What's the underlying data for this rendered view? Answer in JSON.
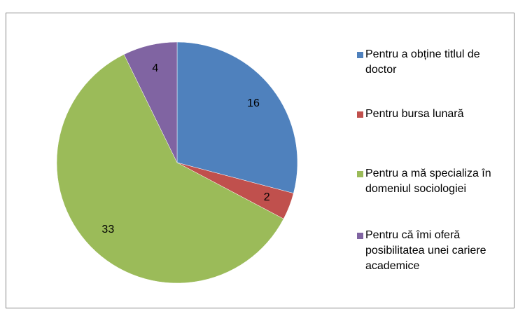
{
  "chart_data": {
    "type": "pie",
    "categories": [
      "Pentru a obține titlul de doctor",
      "Pentru bursa lunară",
      "Pentru a mă specializa în domeniul sociologiei",
      "Pentru că îmi oferă posibilitatea unei cariere academice"
    ],
    "values": [
      16,
      2,
      33,
      4
    ],
    "colors": [
      "#4f81bd",
      "#c0504d",
      "#9bbb59",
      "#8064a2"
    ],
    "legend": "right"
  }
}
